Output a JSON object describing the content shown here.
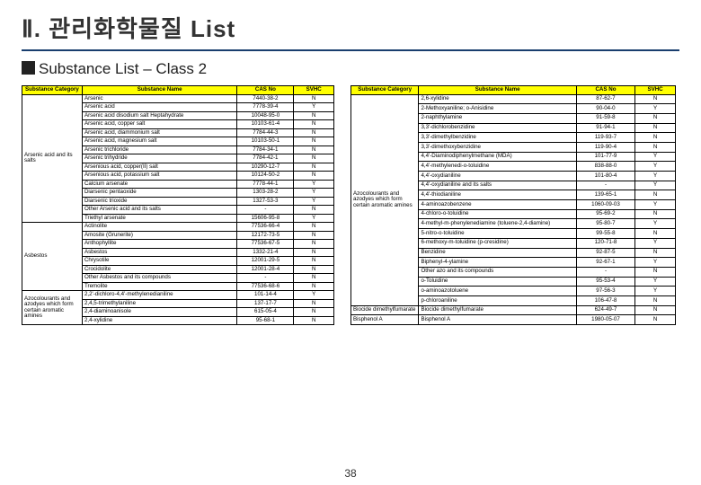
{
  "header": {
    "title": "Ⅱ. 관리화학물질 List",
    "subtitle": "Substance List – Class 2"
  },
  "columns": {
    "cat": "Substance Category",
    "name": "Substance Name",
    "cas": "CAS No",
    "svhc": "SVHC"
  },
  "left": {
    "groups": [
      {
        "cat": "Arsenic acid and its salts",
        "rows": [
          {
            "name": "Arsenic",
            "cas": "7440-38-2",
            "svhc": "N"
          },
          {
            "name": "Arsenic acid",
            "cas": "7778-39-4",
            "svhc": "Y"
          },
          {
            "name": "Arsenic acid disodium salt Heptahydrate",
            "cas": "10048-95-0",
            "svhc": "N"
          },
          {
            "name": "Arsenic acid, copper salt",
            "cas": "10103-61-4",
            "svhc": "N"
          },
          {
            "name": "Arsenic acid, diammonium salt",
            "cas": "7784-44-3",
            "svhc": "N"
          },
          {
            "name": "Arsenic acid, magnesium salt",
            "cas": "10103-50-1",
            "svhc": "N"
          },
          {
            "name": "Arsenic trichloride",
            "cas": "7784-34-1",
            "svhc": "N"
          },
          {
            "name": "Arsenic trihydride",
            "cas": "7784-42-1",
            "svhc": "N"
          },
          {
            "name": "Arsenious acid, copper(II) salt",
            "cas": "10290-12-7",
            "svhc": "N"
          },
          {
            "name": "Arsenious acid, potassium salt",
            "cas": "10124-50-2",
            "svhc": "N"
          },
          {
            "name": "Calcium arsenate",
            "cas": "7778-44-1",
            "svhc": "Y"
          },
          {
            "name": "Diarsenic pentaoxide",
            "cas": "1303-28-2",
            "svhc": "Y"
          },
          {
            "name": "Diarsenic trioxide",
            "cas": "1327-53-3",
            "svhc": "Y"
          },
          {
            "name": "Other Arsenic acid and its salts",
            "cas": "-",
            "svhc": "N"
          },
          {
            "name": "Triethyl arsenate",
            "cas": "15606-95-8",
            "svhc": "Y"
          }
        ]
      },
      {
        "cat": "Asbestos",
        "rows": [
          {
            "name": "Actinolite",
            "cas": "77536-66-4",
            "svhc": "N"
          },
          {
            "name": "Amosite (Grunerite)",
            "cas": "12172-73-5",
            "svhc": "N"
          },
          {
            "name": "Anthophyllite",
            "cas": "77536-67-5",
            "svhc": "N"
          },
          {
            "name": "Asbestos",
            "cas": "1332-21-4",
            "svhc": "N"
          },
          {
            "name": "Chrysotile",
            "cas": "12001-29-5",
            "svhc": "N"
          },
          {
            "name": "Crocidolite",
            "cas": "12001-28-4",
            "svhc": "N"
          },
          {
            "name": "Other Asbestos and its compounds",
            "cas": "-",
            "svhc": "N"
          },
          {
            "name": "Tremolite",
            "cas": "77536-68-6",
            "svhc": "N"
          }
        ]
      },
      {
        "cat": "Azocolourants and azodyes which form certain aromatic amines",
        "rows": [
          {
            "name": "2,2'-dichloro-4,4'-methylenedianiline",
            "cas": "101-14-4",
            "svhc": "Y"
          },
          {
            "name": "2,4,5-trimethylaniline",
            "cas": "137-17-7",
            "svhc": "N"
          },
          {
            "name": "2,4-diaminoanisole",
            "cas": "615-05-4",
            "svhc": "N"
          },
          {
            "name": "2,4-xylidine",
            "cas": "95-68-1",
            "svhc": "N"
          }
        ]
      }
    ]
  },
  "right": {
    "groups": [
      {
        "cat": "Azocolourants and azodyes which form certain aromatic amines",
        "rows": [
          {
            "name": "2,6-xylidine",
            "cas": "87-62-7",
            "svhc": "N"
          },
          {
            "name": "2-Methoxyaniline; o-Anisidine",
            "cas": "90-04-0",
            "svhc": "Y"
          },
          {
            "name": "2-naphthylamine",
            "cas": "91-59-8",
            "svhc": "N"
          },
          {
            "name": "3,3'-dichlorobenzidine",
            "cas": "91-94-1",
            "svhc": "N"
          },
          {
            "name": "3,3'-dimethylbenzidine",
            "cas": "119-93-7",
            "svhc": "N"
          },
          {
            "name": "3,3'-dimethoxybenzidine",
            "cas": "119-90-4",
            "svhc": "N"
          },
          {
            "name": "4,4'-Diaminodiphenylmethane (MDA)",
            "cas": "101-77-9",
            "svhc": "Y"
          },
          {
            "name": "4,4'-methylenedi-o-toluidine",
            "cas": "838-88-0",
            "svhc": "Y"
          },
          {
            "name": "4,4'-oxydianiline",
            "cas": "101-80-4",
            "svhc": "Y"
          },
          {
            "name": "4,4'-oxydianiline and its salts",
            "cas": "-",
            "svhc": "Y"
          },
          {
            "name": "4,4'-thiodianiline",
            "cas": "139-65-1",
            "svhc": "N"
          },
          {
            "name": "4-aminoazobenzene",
            "cas": "1060-09-03",
            "svhc": "Y"
          },
          {
            "name": "4-chloro-o-toluidine",
            "cas": "95-69-2",
            "svhc": "N"
          },
          {
            "name": "4-methyl-m-phenylenediamine (toluene-2,4-diamine)",
            "cas": "95-80-7",
            "svhc": "Y"
          },
          {
            "name": "5-nitro-o-toluidine",
            "cas": "99-55-8",
            "svhc": "N"
          },
          {
            "name": "6-methoxy-m-toluidine (p-cresidine)",
            "cas": "120-71-8",
            "svhc": "Y"
          },
          {
            "name": "Benzidine",
            "cas": "92-87-5",
            "svhc": "N"
          },
          {
            "name": "Biphenyl-4-ylamine",
            "cas": "92-67-1",
            "svhc": "Y"
          },
          {
            "name": "Other azo and its compounds",
            "cas": "-",
            "svhc": "N"
          },
          {
            "name": "o-Toluidine",
            "cas": "95-53-4",
            "svhc": "Y"
          },
          {
            "name": "o-aminoazotoluene",
            "cas": "97-56-3",
            "svhc": "Y"
          },
          {
            "name": "p-chloroaniline",
            "cas": "106-47-8",
            "svhc": "N"
          }
        ]
      },
      {
        "cat": "Biocide dimethylfumarate",
        "rows": [
          {
            "name": "Biocide dimethylfumarate",
            "cas": "624-49-7",
            "svhc": "N"
          }
        ]
      },
      {
        "cat": "Bisphenol A",
        "rows": [
          {
            "name": "Bisphenol A",
            "cas": "1980-05-07",
            "svhc": "N"
          }
        ]
      }
    ]
  },
  "pagenum": "38"
}
